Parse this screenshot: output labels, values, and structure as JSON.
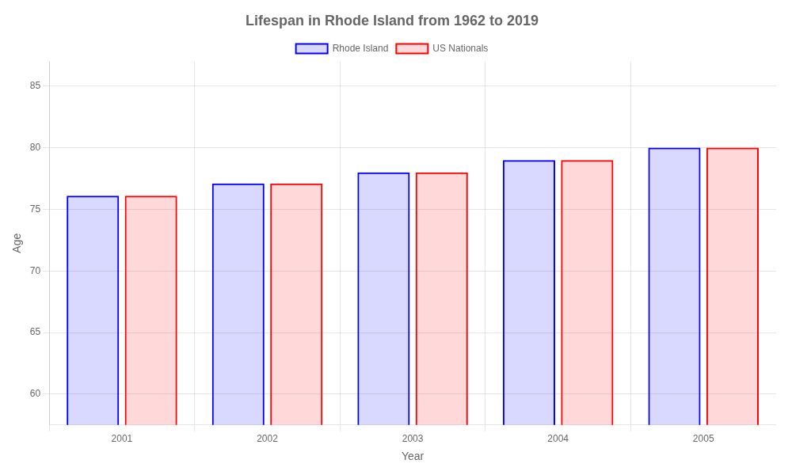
{
  "chart_data": {
    "type": "bar",
    "title": "Lifespan in Rhode Island from 1962 to 2019",
    "x_label": "Year",
    "y_label": "Age",
    "categories": [
      "2001",
      "2002",
      "2003",
      "2004",
      "2005"
    ],
    "series": [
      {
        "name": "Rhode Island",
        "color": "#0000ff",
        "values": [
          76.1,
          77.1,
          78.0,
          79.0,
          80.0
        ]
      },
      {
        "name": "US Nationals",
        "color": "#ff0000",
        "values": [
          76.1,
          77.1,
          78.0,
          79.0,
          80.0
        ]
      }
    ],
    "ylim": [
      57.5,
      87
    ],
    "yticks": [
      60,
      65,
      70,
      75,
      80,
      85
    ],
    "grid": true,
    "legend": "top"
  }
}
